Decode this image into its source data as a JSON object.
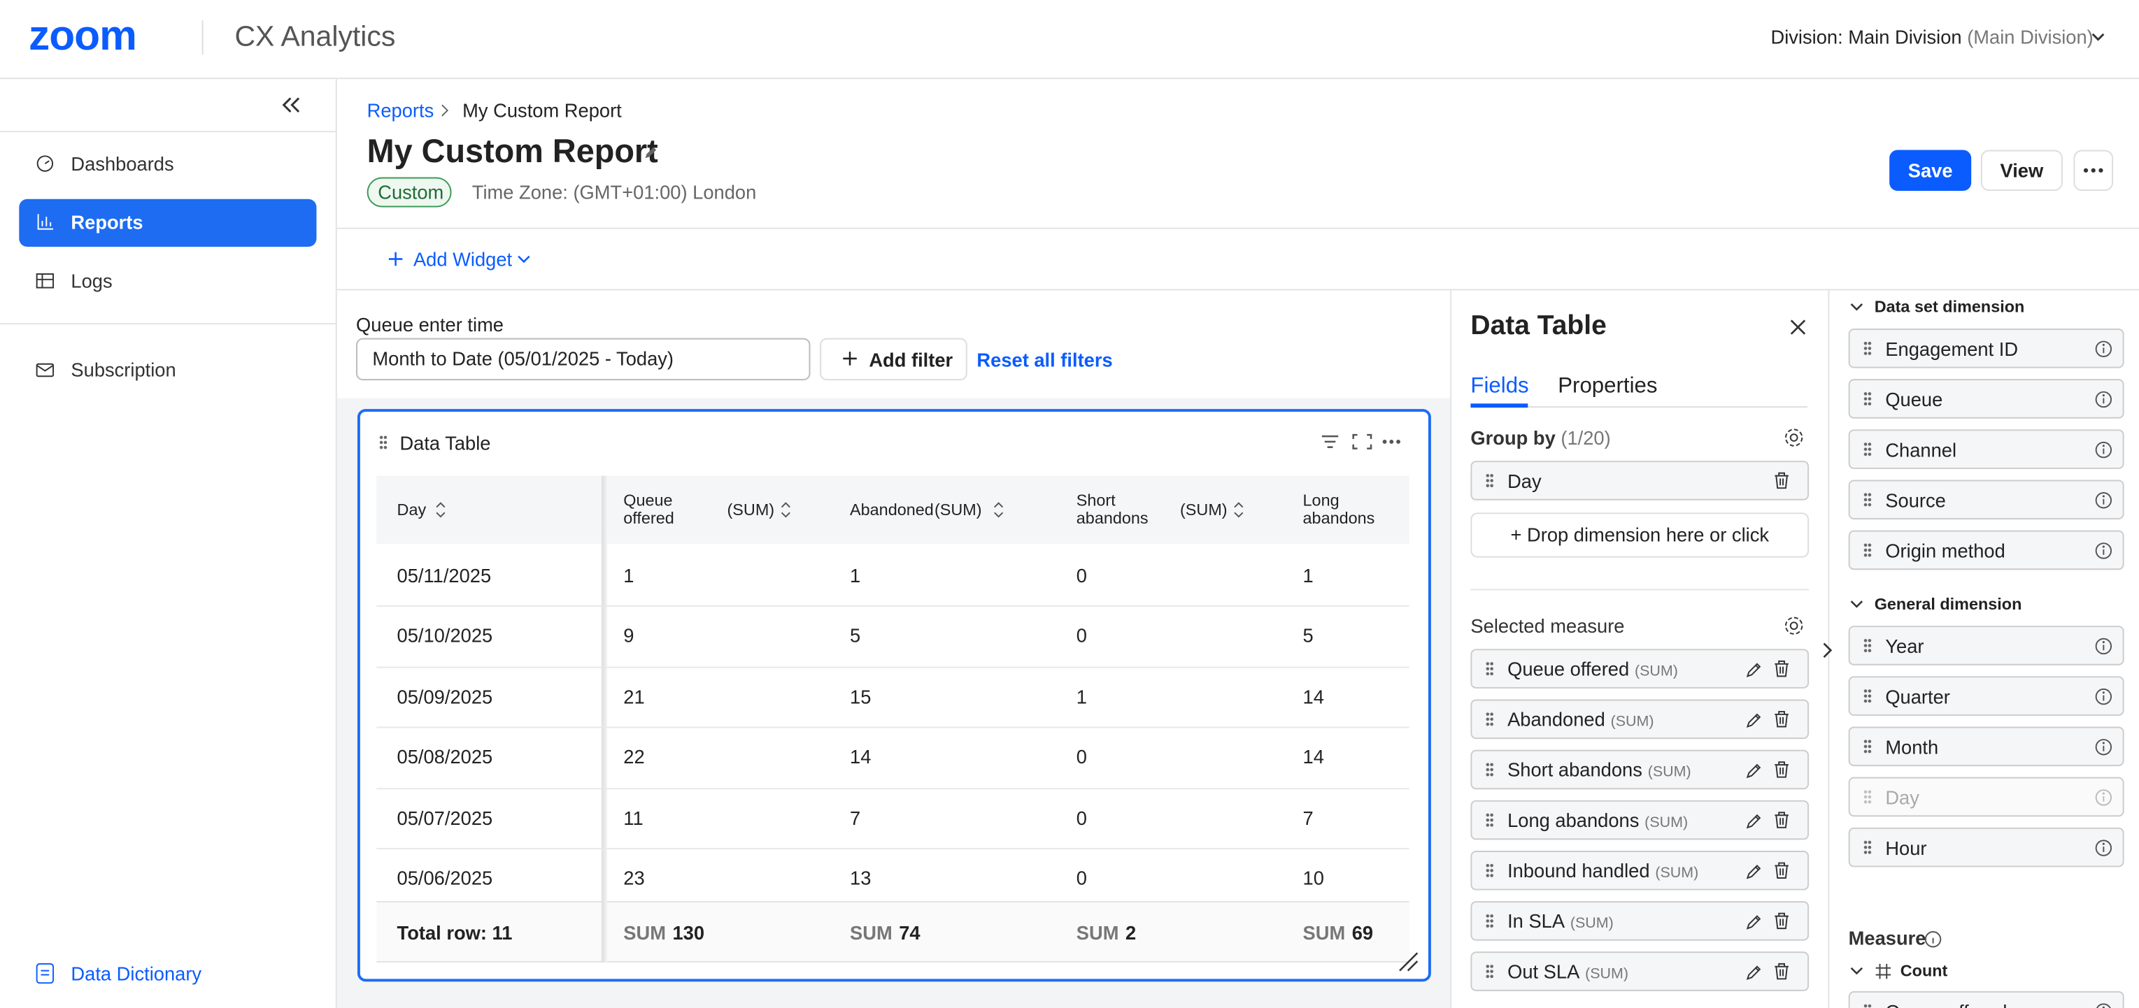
{
  "header": {
    "logo": "zoom",
    "app": "CX Analytics",
    "division": "Division: Main Division",
    "division_sub": "(Main Division)"
  },
  "sidebar": {
    "nav": [
      "Dashboards",
      "Reports",
      "Logs",
      "Subscription"
    ],
    "footer": "Data Dictionary"
  },
  "page": {
    "breadcrumb": [
      "Reports",
      "My Custom Report"
    ],
    "title": "My Custom Report",
    "tag": "Custom",
    "timezone": "Time Zone: (GMT+01:00) London",
    "buttons": [
      "Save",
      "View"
    ],
    "add_widget": "Add Widget"
  },
  "filter": {
    "label": "Queue enter time",
    "value": "Month to Date (05/01/2025 - Today)",
    "add": "Add filter",
    "reset": "Reset all filters"
  },
  "widget": {
    "title": "Data Table",
    "columns": [
      {
        "name": "Day"
      },
      {
        "name": "Queue offered",
        "agg": "(SUM)"
      },
      {
        "name": "Abandoned",
        "agg": "(SUM)"
      },
      {
        "name": "Short abandons",
        "agg": "(SUM)"
      },
      {
        "name": "Long abandons"
      }
    ],
    "rows": [
      [
        "05/11/2025",
        1,
        1,
        0,
        1
      ],
      [
        "05/10/2025",
        9,
        5,
        0,
        5
      ],
      [
        "05/09/2025",
        21,
        15,
        1,
        14
      ],
      [
        "05/08/2025",
        22,
        14,
        0,
        14
      ],
      [
        "05/07/2025",
        11,
        7,
        0,
        7
      ],
      [
        "05/06/2025",
        23,
        13,
        0,
        10
      ]
    ],
    "total": {
      "label": "Total row: 11",
      "sum_label": "SUM",
      "values": [
        130,
        74,
        2,
        69
      ]
    }
  },
  "panel": {
    "title": "Data Table",
    "tabs": [
      "Fields",
      "Properties"
    ],
    "group_by": "Group by",
    "group_count": "(1/20)",
    "group_items": [
      "Day"
    ],
    "drop": "+ Drop dimension here or click",
    "selected_measure": "Selected measure",
    "measures": [
      {
        "name": "Queue offered",
        "agg": "(SUM)"
      },
      {
        "name": "Abandoned",
        "agg": "(SUM)"
      },
      {
        "name": "Short abandons",
        "agg": "(SUM)"
      },
      {
        "name": "Long abandons",
        "agg": "(SUM)"
      },
      {
        "name": "Inbound handled",
        "agg": "(SUM)"
      },
      {
        "name": "In SLA",
        "agg": "(SUM)"
      },
      {
        "name": "Out SLA",
        "agg": "(SUM)"
      }
    ]
  },
  "fields": {
    "dataset_title": "Data set dimension",
    "dataset": [
      "Engagement ID",
      "Queue",
      "Channel",
      "Source",
      "Origin method"
    ],
    "general_title": "General dimension",
    "general": [
      "Year",
      "Quarter",
      "Month",
      "Day",
      "Hour"
    ],
    "measure_title": "Measure",
    "count_title": "Count",
    "count_items": [
      "Queue offered"
    ]
  }
}
